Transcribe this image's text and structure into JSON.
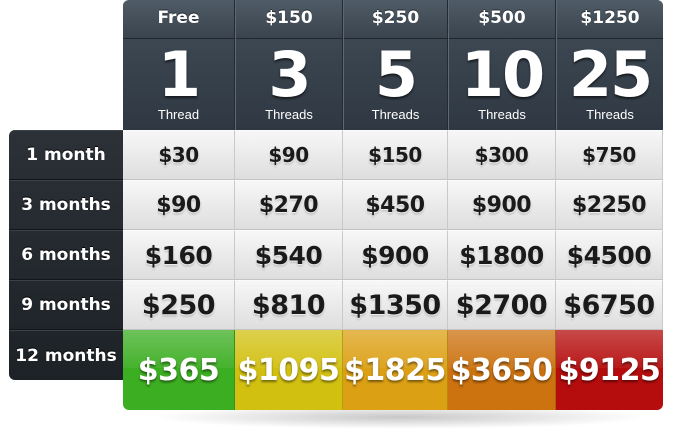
{
  "plans": [
    {
      "price": "Free",
      "count": "1",
      "unit": "Thread"
    },
    {
      "price": "$150",
      "count": "3",
      "unit": "Threads"
    },
    {
      "price": "$250",
      "count": "5",
      "unit": "Threads"
    },
    {
      "price": "$500",
      "count": "10",
      "unit": "Threads"
    },
    {
      "price": "$1250",
      "count": "25",
      "unit": "Threads"
    }
  ],
  "durations": [
    "1 month",
    "3 months",
    "6 months",
    "9 months",
    "12 months"
  ],
  "prices": [
    [
      "$30",
      "$90",
      "$150",
      "$300",
      "$750"
    ],
    [
      "$90",
      "$270",
      "$450",
      "$900",
      "$2250"
    ],
    [
      "$160",
      "$540",
      "$900",
      "$1800",
      "$4500"
    ],
    [
      "$250",
      "$810",
      "$1350",
      "$2700",
      "$6750"
    ],
    [
      "$365",
      "$1095",
      "$1825",
      "$3650",
      "$9125"
    ]
  ],
  "highlight_colors": [
    "#3cae22",
    "#d2c011",
    "#dca015",
    "#cc720f",
    "#b50d0d"
  ]
}
